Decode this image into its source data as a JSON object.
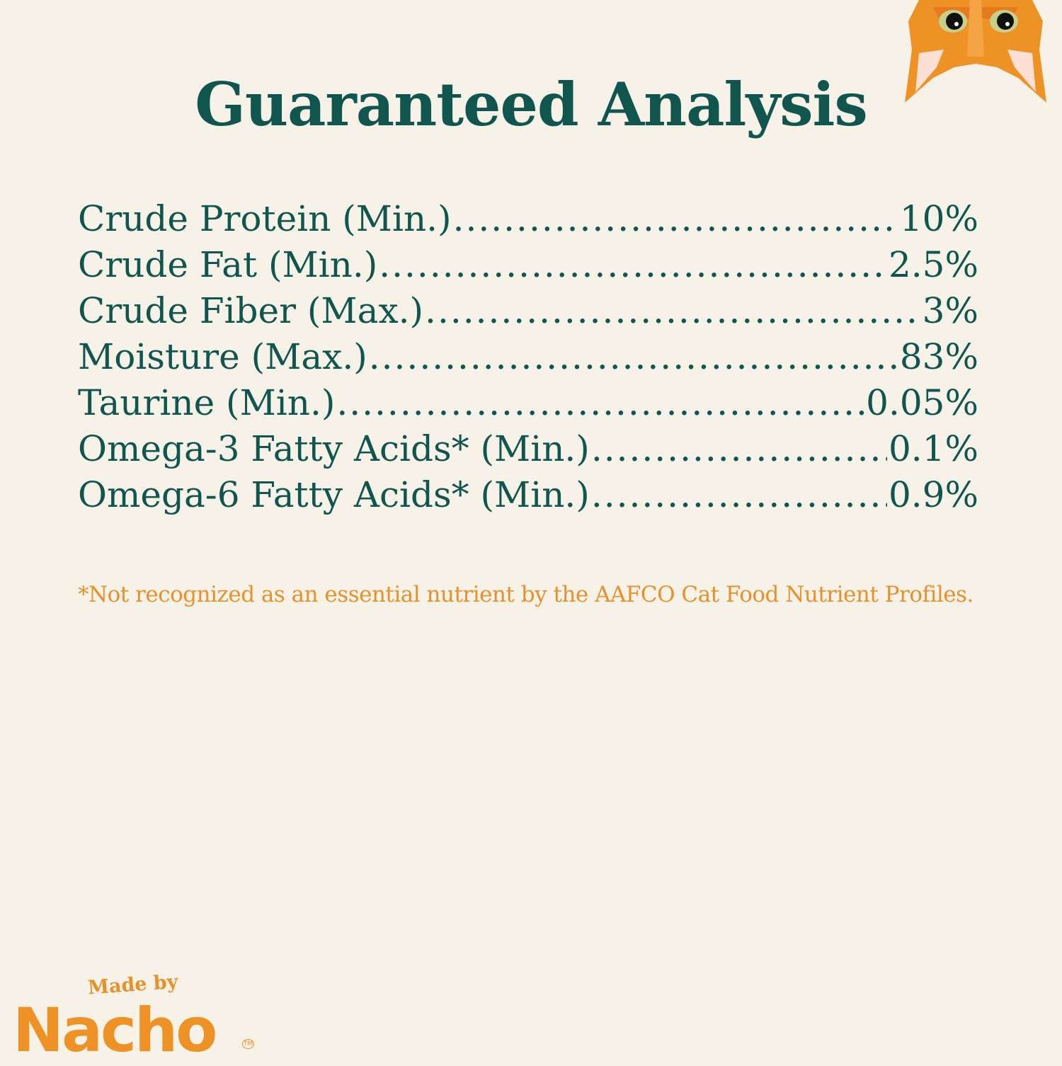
{
  "title": "Guaranteed Analysis",
  "analysis": [
    {
      "label": "Crude Protein (Min.)",
      "value": "10%"
    },
    {
      "label": "Crude Fat (Min.)",
      "value": "2.5%"
    },
    {
      "label": "Crude Fiber (Max.)",
      "value": "3%"
    },
    {
      "label": "Moisture (Max.)",
      "value": "83%"
    },
    {
      "label": "Taurine (Min.)",
      "value": "0.05%"
    },
    {
      "label": "Omega-3 Fatty Acids* (Min.)",
      "value": "0.1%"
    },
    {
      "label": "Omega-6 Fatty Acids* (Min.)",
      "value": "0.9%"
    }
  ],
  "footnote": "*Not recognized as an essential nutrient by the AAFCO Cat Food Nutrient Profiles.",
  "logo": {
    "made_by": "Made by",
    "brand": "Nacho",
    "tm": "TM"
  },
  "icons": {
    "mascot": "cat-face-icon"
  },
  "colors": {
    "background": "#f6f2e8",
    "text": "#11554f",
    "accent": "#e8902a"
  }
}
